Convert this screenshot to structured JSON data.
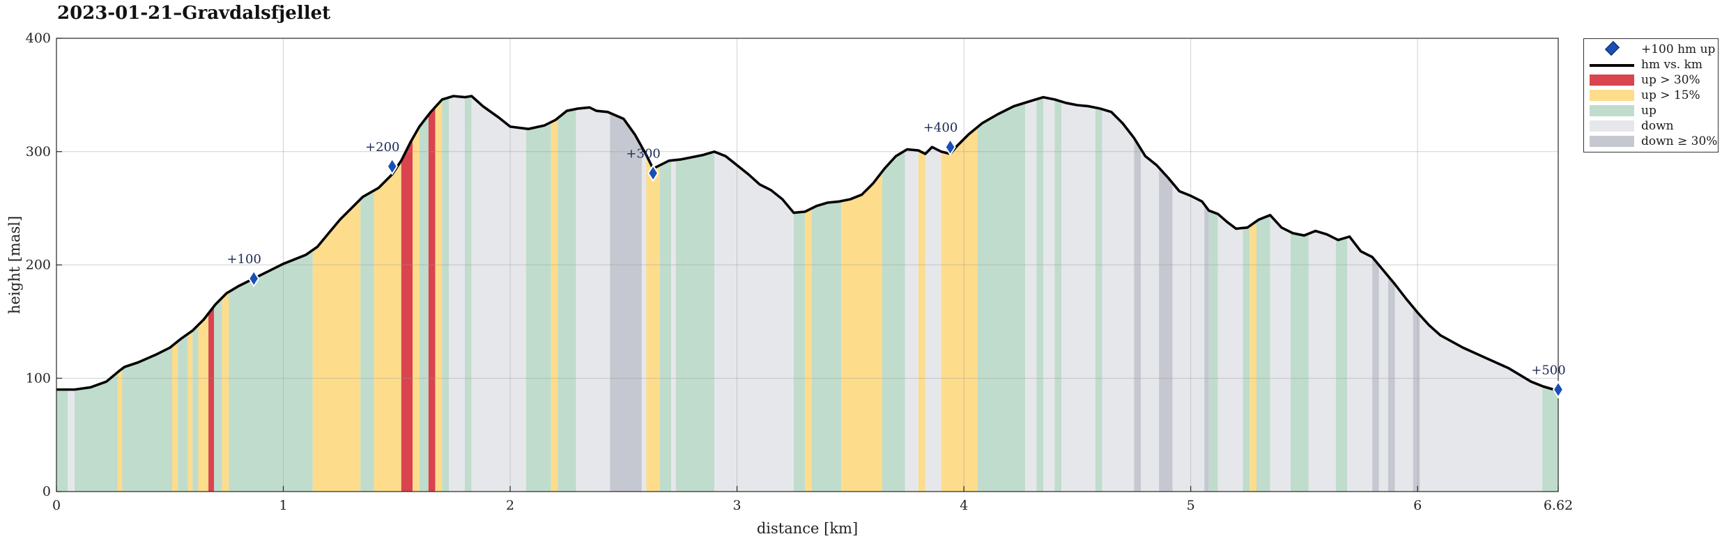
{
  "title": "2023-01-21–Gravdalsfjellet",
  "chart_data": {
    "type": "area",
    "xlabel": "distance [km]",
    "ylabel": "height [masl]",
    "xlim": [
      0,
      6.62
    ],
    "ylim": [
      0,
      400
    ],
    "xticks": [
      "0",
      "1",
      "2",
      "3",
      "4",
      "5",
      "6",
      "6.62"
    ],
    "xtick_values": [
      0,
      1,
      2,
      3,
      4,
      5,
      6,
      6.62
    ],
    "yticks": [
      0,
      100,
      200,
      300,
      400
    ],
    "grid": true,
    "legend_placement": "outside-top-right",
    "legend": [
      {
        "label": "+100 hm up",
        "kind": "marker",
        "color": "#1a4fb5"
      },
      {
        "label": "hm vs. km",
        "kind": "line",
        "color": "#000000"
      },
      {
        "label": "up > 30%",
        "kind": "patch",
        "color": "#d9444e"
      },
      {
        "label": "up > 15%",
        "kind": "patch",
        "color": "#fddc8c"
      },
      {
        "label": "up",
        "kind": "patch",
        "color": "#c0dccc"
      },
      {
        "label": "down",
        "kind": "patch",
        "color": "#e6e7eb"
      },
      {
        "label": "down ≥ 30%",
        "kind": "patch",
        "color": "#c5c8d0"
      }
    ],
    "profile": [
      [
        0.0,
        90
      ],
      [
        0.08,
        90
      ],
      [
        0.15,
        92
      ],
      [
        0.22,
        97
      ],
      [
        0.28,
        107
      ],
      [
        0.3,
        110
      ],
      [
        0.36,
        114
      ],
      [
        0.44,
        121
      ],
      [
        0.5,
        127
      ],
      [
        0.55,
        135
      ],
      [
        0.6,
        142
      ],
      [
        0.65,
        152
      ],
      [
        0.7,
        165
      ],
      [
        0.75,
        175
      ],
      [
        0.8,
        181
      ],
      [
        0.87,
        188
      ],
      [
        0.93,
        194
      ],
      [
        1.0,
        201
      ],
      [
        1.05,
        205
      ],
      [
        1.1,
        209
      ],
      [
        1.15,
        216
      ],
      [
        1.2,
        228
      ],
      [
        1.25,
        240
      ],
      [
        1.3,
        250
      ],
      [
        1.35,
        260
      ],
      [
        1.42,
        268
      ],
      [
        1.48,
        280
      ],
      [
        1.52,
        292
      ],
      [
        1.56,
        308
      ],
      [
        1.6,
        322
      ],
      [
        1.65,
        335
      ],
      [
        1.7,
        346
      ],
      [
        1.75,
        349
      ],
      [
        1.8,
        348
      ],
      [
        1.83,
        349
      ],
      [
        1.88,
        340
      ],
      [
        1.95,
        330
      ],
      [
        2.0,
        322
      ],
      [
        2.08,
        320
      ],
      [
        2.15,
        323
      ],
      [
        2.2,
        328
      ],
      [
        2.25,
        336
      ],
      [
        2.3,
        338
      ],
      [
        2.35,
        339
      ],
      [
        2.38,
        336
      ],
      [
        2.43,
        335
      ],
      [
        2.5,
        329
      ],
      [
        2.55,
        315
      ],
      [
        2.6,
        297
      ],
      [
        2.63,
        285
      ],
      [
        2.66,
        288
      ],
      [
        2.7,
        292
      ],
      [
        2.75,
        293
      ],
      [
        2.8,
        295
      ],
      [
        2.85,
        297
      ],
      [
        2.9,
        300
      ],
      [
        2.95,
        296
      ],
      [
        3.0,
        288
      ],
      [
        3.05,
        280
      ],
      [
        3.1,
        271
      ],
      [
        3.15,
        266
      ],
      [
        3.2,
        258
      ],
      [
        3.25,
        246
      ],
      [
        3.3,
        247
      ],
      [
        3.35,
        252
      ],
      [
        3.4,
        255
      ],
      [
        3.45,
        256
      ],
      [
        3.5,
        258
      ],
      [
        3.55,
        262
      ],
      [
        3.6,
        272
      ],
      [
        3.65,
        285
      ],
      [
        3.7,
        296
      ],
      [
        3.75,
        302
      ],
      [
        3.8,
        301
      ],
      [
        3.83,
        298
      ],
      [
        3.86,
        304
      ],
      [
        3.9,
        300
      ],
      [
        3.94,
        298
      ],
      [
        3.97,
        305
      ],
      [
        4.02,
        315
      ],
      [
        4.08,
        325
      ],
      [
        4.15,
        333
      ],
      [
        4.22,
        340
      ],
      [
        4.3,
        345
      ],
      [
        4.35,
        348
      ],
      [
        4.4,
        346
      ],
      [
        4.45,
        343
      ],
      [
        4.5,
        341
      ],
      [
        4.55,
        340
      ],
      [
        4.6,
        338
      ],
      [
        4.65,
        335
      ],
      [
        4.7,
        325
      ],
      [
        4.75,
        312
      ],
      [
        4.8,
        296
      ],
      [
        4.85,
        288
      ],
      [
        4.9,
        277
      ],
      [
        4.95,
        265
      ],
      [
        5.0,
        261
      ],
      [
        5.05,
        256
      ],
      [
        5.08,
        248
      ],
      [
        5.12,
        245
      ],
      [
        5.16,
        238
      ],
      [
        5.2,
        232
      ],
      [
        5.25,
        233
      ],
      [
        5.3,
        240
      ],
      [
        5.35,
        244
      ],
      [
        5.4,
        233
      ],
      [
        5.45,
        228
      ],
      [
        5.5,
        226
      ],
      [
        5.55,
        230
      ],
      [
        5.6,
        227
      ],
      [
        5.65,
        222
      ],
      [
        5.7,
        225
      ],
      [
        5.75,
        212
      ],
      [
        5.8,
        207
      ],
      [
        5.85,
        195
      ],
      [
        5.9,
        183
      ],
      [
        5.95,
        170
      ],
      [
        6.0,
        158
      ],
      [
        6.05,
        147
      ],
      [
        6.1,
        138
      ],
      [
        6.2,
        127
      ],
      [
        6.3,
        118
      ],
      [
        6.4,
        109
      ],
      [
        6.5,
        97
      ],
      [
        6.55,
        93
      ],
      [
        6.6,
        90
      ],
      [
        6.62,
        90
      ]
    ],
    "segments": [
      [
        0.0,
        0.05,
        "up"
      ],
      [
        0.05,
        0.08,
        "down"
      ],
      [
        0.08,
        0.27,
        "up"
      ],
      [
        0.27,
        0.29,
        "up15"
      ],
      [
        0.29,
        0.51,
        "up"
      ],
      [
        0.51,
        0.535,
        "up15"
      ],
      [
        0.535,
        0.58,
        "up"
      ],
      [
        0.58,
        0.6,
        "up15"
      ],
      [
        0.6,
        0.625,
        "up"
      ],
      [
        0.625,
        0.67,
        "up15"
      ],
      [
        0.67,
        0.695,
        "up30"
      ],
      [
        0.695,
        0.73,
        "up"
      ],
      [
        0.73,
        0.76,
        "up15"
      ],
      [
        0.76,
        1.13,
        "up"
      ],
      [
        1.13,
        1.34,
        "up15"
      ],
      [
        1.34,
        1.4,
        "up"
      ],
      [
        1.4,
        1.52,
        "up15"
      ],
      [
        1.52,
        1.57,
        "up30"
      ],
      [
        1.57,
        1.6,
        "up15"
      ],
      [
        1.6,
        1.64,
        "up"
      ],
      [
        1.64,
        1.67,
        "up30"
      ],
      [
        1.67,
        1.7,
        "up15"
      ],
      [
        1.7,
        1.73,
        "up"
      ],
      [
        1.73,
        1.8,
        "down"
      ],
      [
        1.8,
        1.83,
        "up"
      ],
      [
        1.83,
        2.07,
        "down"
      ],
      [
        2.07,
        2.18,
        "up"
      ],
      [
        2.18,
        2.21,
        "up15"
      ],
      [
        2.21,
        2.29,
        "up"
      ],
      [
        2.29,
        2.44,
        "down"
      ],
      [
        2.44,
        2.58,
        "down30"
      ],
      [
        2.58,
        2.6,
        "down"
      ],
      [
        2.6,
        2.66,
        "up15"
      ],
      [
        2.66,
        2.71,
        "up"
      ],
      [
        2.71,
        2.73,
        "down"
      ],
      [
        2.73,
        2.9,
        "up"
      ],
      [
        2.9,
        3.25,
        "down"
      ],
      [
        3.25,
        3.3,
        "up"
      ],
      [
        3.3,
        3.33,
        "up15"
      ],
      [
        3.33,
        3.46,
        "up"
      ],
      [
        3.46,
        3.64,
        "up15"
      ],
      [
        3.64,
        3.74,
        "up"
      ],
      [
        3.74,
        3.8,
        "down"
      ],
      [
        3.8,
        3.83,
        "up15"
      ],
      [
        3.83,
        3.9,
        "down"
      ],
      [
        3.9,
        4.06,
        "up15"
      ],
      [
        4.06,
        4.27,
        "up"
      ],
      [
        4.27,
        4.32,
        "down"
      ],
      [
        4.32,
        4.35,
        "up"
      ],
      [
        4.35,
        4.4,
        "down"
      ],
      [
        4.4,
        4.43,
        "up"
      ],
      [
        4.43,
        4.58,
        "down"
      ],
      [
        4.58,
        4.61,
        "up"
      ],
      [
        4.61,
        4.75,
        "down"
      ],
      [
        4.75,
        4.78,
        "down30"
      ],
      [
        4.78,
        4.86,
        "down"
      ],
      [
        4.86,
        4.92,
        "down30"
      ],
      [
        4.92,
        5.06,
        "down"
      ],
      [
        5.06,
        5.08,
        "down30"
      ],
      [
        5.08,
        5.12,
        "up"
      ],
      [
        5.12,
        5.23,
        "down"
      ],
      [
        5.23,
        5.26,
        "up"
      ],
      [
        5.26,
        5.29,
        "up15"
      ],
      [
        5.29,
        5.35,
        "up"
      ],
      [
        5.35,
        5.44,
        "down"
      ],
      [
        5.44,
        5.52,
        "up"
      ],
      [
        5.52,
        5.64,
        "down"
      ],
      [
        5.64,
        5.69,
        "up"
      ],
      [
        5.69,
        5.8,
        "down"
      ],
      [
        5.8,
        5.83,
        "down30"
      ],
      [
        5.83,
        5.87,
        "down"
      ],
      [
        5.87,
        5.9,
        "down30"
      ],
      [
        5.9,
        5.98,
        "down"
      ],
      [
        5.98,
        6.01,
        "down30"
      ],
      [
        6.01,
        6.55,
        "down"
      ],
      [
        6.55,
        6.62,
        "up"
      ]
    ],
    "markers": [
      {
        "x": 0.87,
        "y": 188,
        "label": "+100"
      },
      {
        "x": 1.48,
        "y": 287,
        "label": "+200"
      },
      {
        "x": 2.63,
        "y": 281,
        "label": "+300"
      },
      {
        "x": 3.94,
        "y": 304,
        "label": "+400"
      },
      {
        "x": 6.62,
        "y": 90,
        "label": "+500"
      }
    ]
  }
}
